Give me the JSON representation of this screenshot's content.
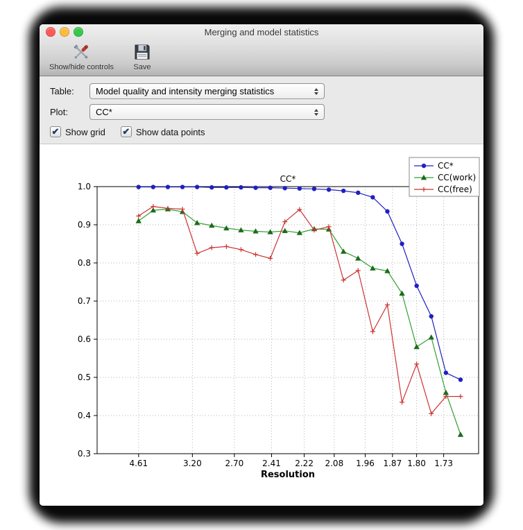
{
  "window": {
    "title": "Merging and model statistics"
  },
  "toolbar": {
    "buttons": [
      {
        "label": "Show/hide controls",
        "icon": "tools-icon"
      },
      {
        "label": "Save",
        "icon": "save-icon"
      }
    ]
  },
  "controls": {
    "check_glyph": "✔",
    "table": {
      "label": "Table:",
      "value": "Model quality and intensity merging statistics"
    },
    "plot": {
      "label": "Plot:",
      "value": "CC*"
    },
    "checkboxes": [
      {
        "label": "Show grid",
        "checked": true
      },
      {
        "label": "Show data points",
        "checked": true
      }
    ]
  },
  "chart_data": {
    "type": "line",
    "title": "CC*",
    "xlabel": "Resolution",
    "ylabel": "",
    "grid": true,
    "show_data_points": true,
    "legend_position": "top-right",
    "ylim": [
      0.3,
      1.0
    ],
    "y_ticks": [
      0.3,
      0.4,
      0.5,
      0.6,
      0.7,
      0.8,
      0.9,
      1.0
    ],
    "x_axis_note": "x is linear in 1/d^2, labels are resolution d in Angstrom",
    "x_tick_labels": [
      "4.61",
      "3.20",
      "2.70",
      "2.41",
      "2.22",
      "2.08",
      "1.96",
      "1.87",
      "1.80",
      "1.73"
    ],
    "x_model": {
      "axis_smin": 0.008,
      "axis_smax": 0.367,
      "s_start": 0.047,
      "s_step": 0.013773
    },
    "series": [
      {
        "name": "CC*",
        "marker": "circle",
        "color": "#2020c0",
        "marker_color": "#2020c0",
        "values": [
          0.999,
          0.999,
          0.999,
          0.999,
          0.999,
          0.998,
          0.998,
          0.998,
          0.997,
          0.997,
          0.996,
          0.995,
          0.994,
          0.992,
          0.989,
          0.984,
          0.972,
          0.935,
          0.85,
          0.74,
          0.66,
          0.512,
          0.494
        ]
      },
      {
        "name": "CC(work)",
        "marker": "triangle",
        "color": "#30a030",
        "marker_color": "#1e6a1e",
        "values": [
          0.91,
          0.938,
          0.941,
          0.934,
          0.905,
          0.898,
          0.891,
          0.886,
          0.883,
          0.881,
          0.884,
          0.879,
          0.889,
          0.888,
          0.83,
          0.812,
          0.786,
          0.779,
          0.72,
          0.58,
          0.605,
          0.46,
          0.35
        ]
      },
      {
        "name": "CC(free)",
        "marker": "plus",
        "color": "#cc3333",
        "marker_color": "#cc3333",
        "values": [
          0.923,
          0.948,
          0.943,
          0.941,
          0.825,
          0.84,
          0.843,
          0.835,
          0.822,
          0.812,
          0.908,
          0.94,
          0.886,
          0.895,
          0.755,
          0.78,
          0.62,
          0.69,
          0.435,
          0.535,
          0.405,
          0.45,
          0.45
        ]
      }
    ]
  }
}
